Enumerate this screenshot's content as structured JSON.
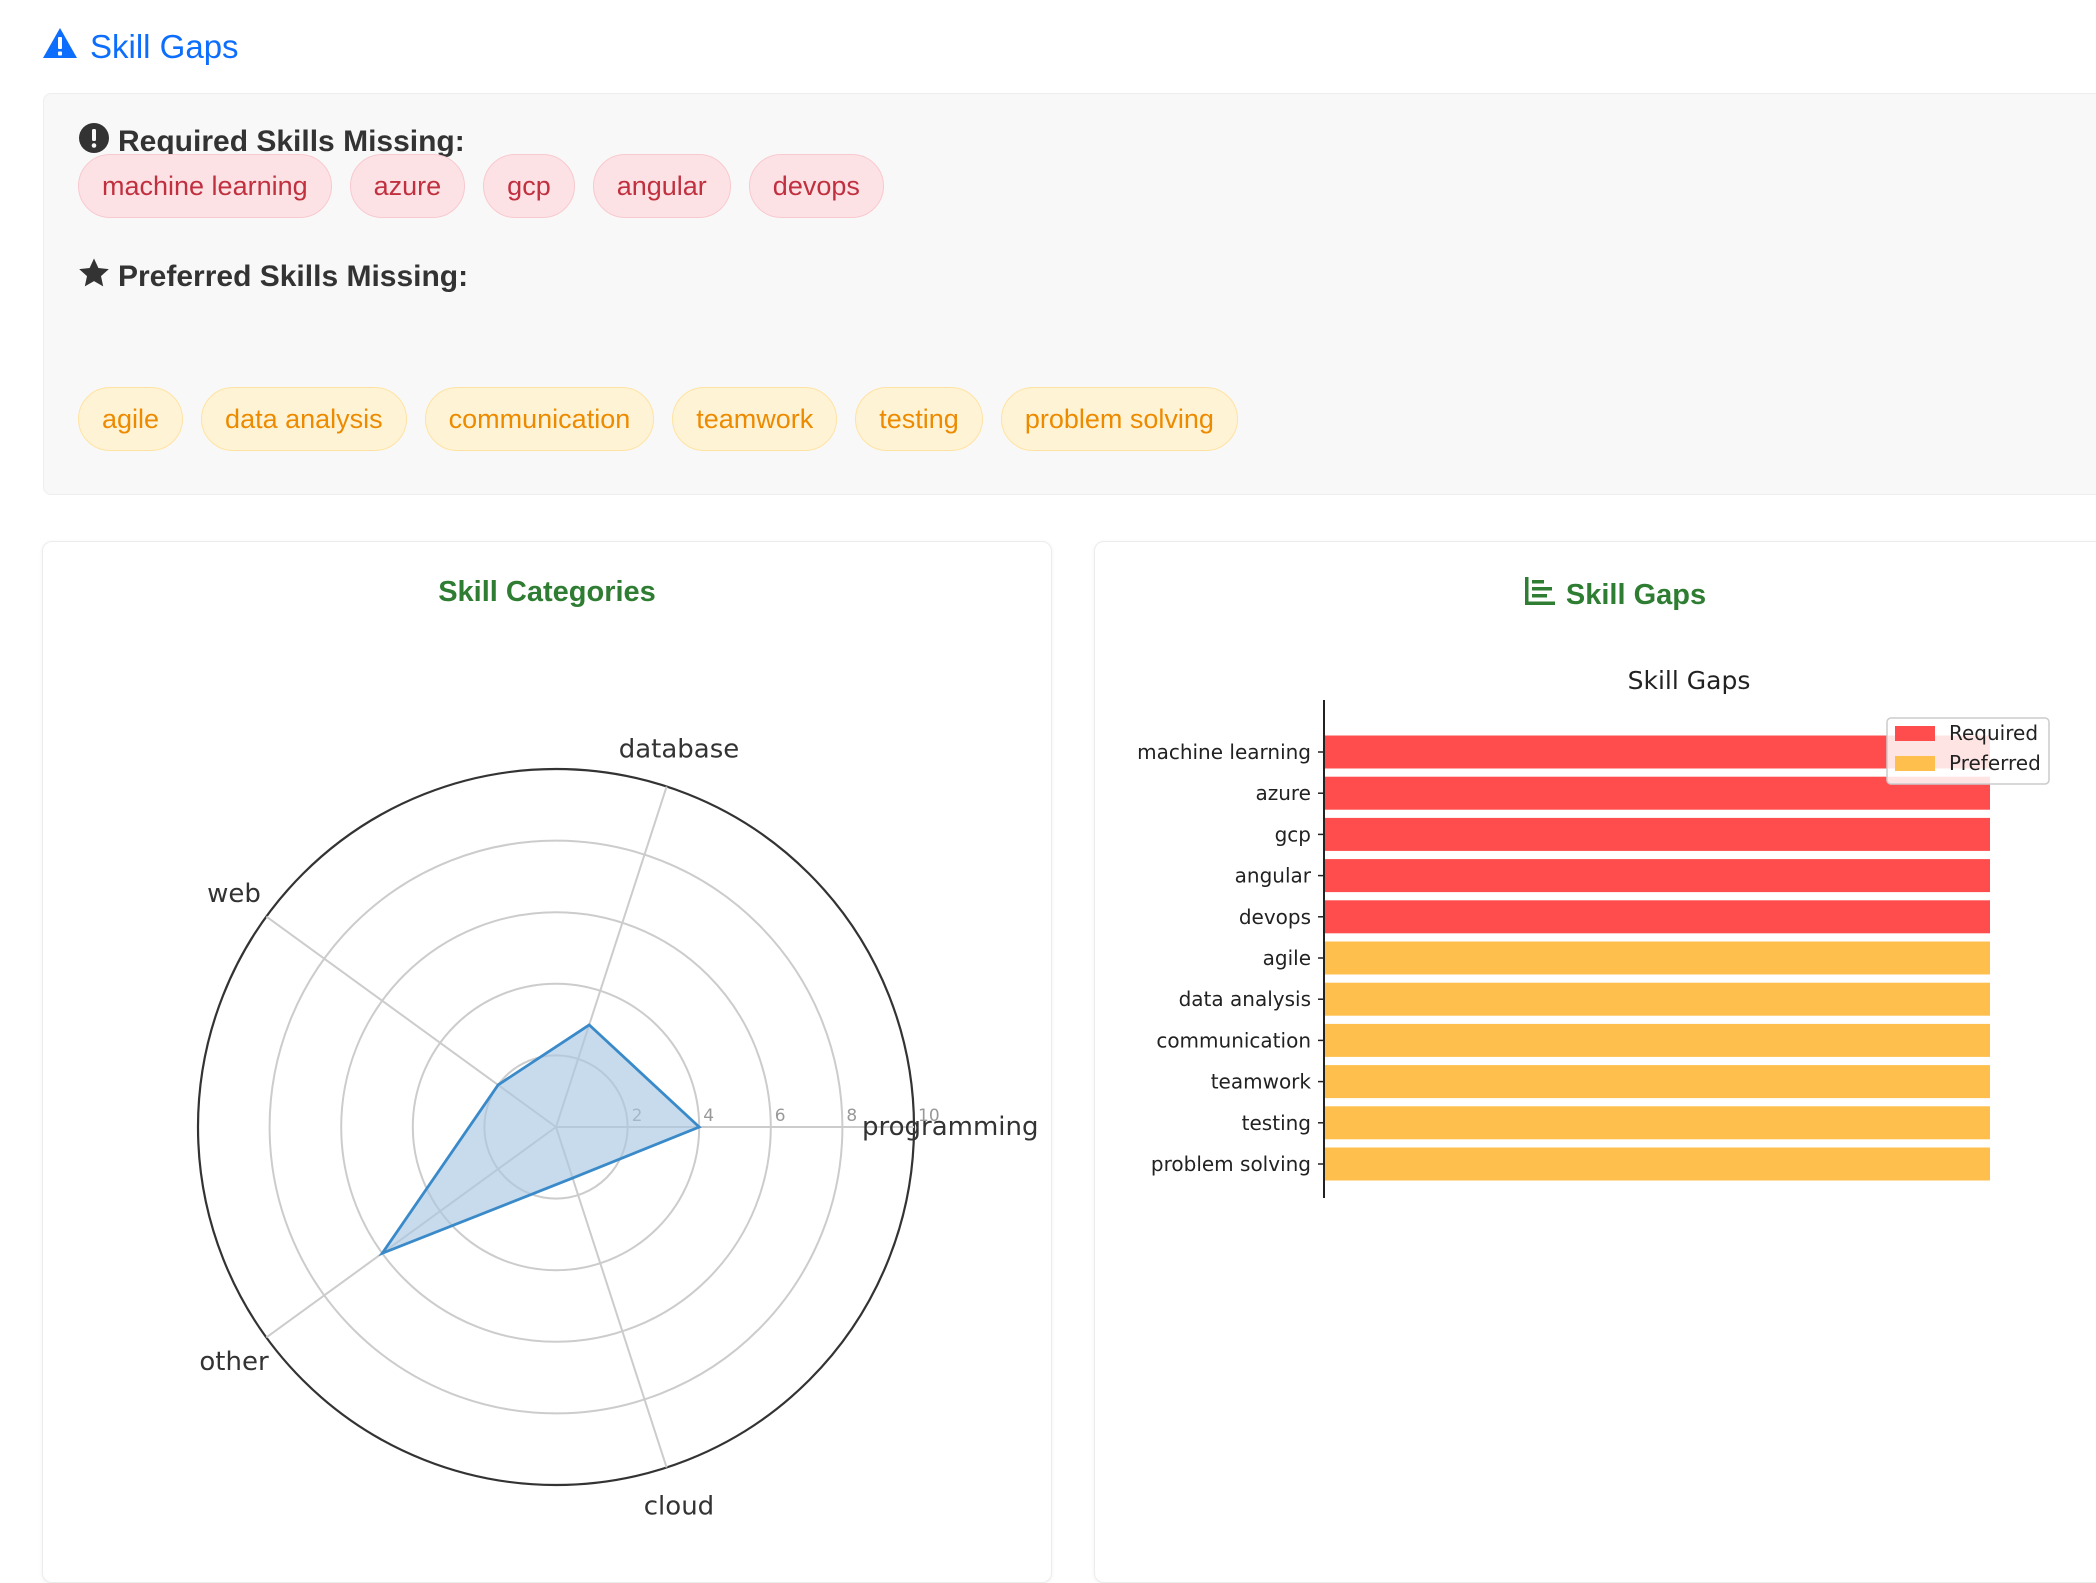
{
  "section_title": "Skill Gaps",
  "icons": {
    "section": "warning-triangle-icon",
    "required": "exclamation-circle-icon",
    "preferred": "star-icon",
    "chart": "bar-chart-icon"
  },
  "colors": {
    "link_blue": "#0d6efd",
    "card_title_green": "#2e7d32",
    "required_bar": "#ff4d4d",
    "preferred_bar": "#ffbf4d",
    "radar_line": "#3a8ac9",
    "radar_fill": "#a9c8e3"
  },
  "required": {
    "heading": "Required Skills Missing:",
    "skills": [
      "machine learning",
      "azure",
      "gcp",
      "angular",
      "devops"
    ]
  },
  "preferred": {
    "heading": "Preferred Skills Missing:",
    "skills": [
      "agile",
      "data analysis",
      "communication",
      "teamwork",
      "testing",
      "problem solving"
    ]
  },
  "cards": {
    "categories_title": "Skill Categories",
    "gaps_title": "Skill Gaps"
  },
  "chart_data": [
    {
      "type": "radar",
      "categories": [
        "programming",
        "database",
        "web",
        "other",
        "cloud"
      ],
      "values": [
        4,
        3,
        2,
        6,
        1.5
      ],
      "rlim": [
        0,
        10
      ],
      "rticks": [
        2,
        4,
        6,
        8,
        10
      ],
      "grid": true
    },
    {
      "type": "bar",
      "orientation": "horizontal",
      "title": "Skill Gaps",
      "categories": [
        "machine learning",
        "azure",
        "gcp",
        "angular",
        "devops",
        "agile",
        "data analysis",
        "communication",
        "teamwork",
        "testing",
        "problem solving"
      ],
      "series": [
        {
          "name": "Required",
          "color": "#ff4d4d",
          "values": [
            1,
            1,
            1,
            1,
            1,
            0,
            0,
            0,
            0,
            0,
            0
          ]
        },
        {
          "name": "Preferred",
          "color": "#ffbf4d",
          "values": [
            0,
            0,
            0,
            0,
            0,
            1,
            1,
            1,
            1,
            1,
            1
          ]
        }
      ],
      "xlim": [
        0,
        1
      ],
      "legend": "top-right",
      "grid": false
    }
  ]
}
